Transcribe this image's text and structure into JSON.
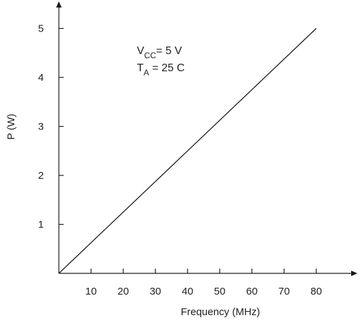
{
  "chart_data": {
    "type": "line",
    "title": "",
    "xlabel": "Frequency (MHz)",
    "ylabel": "P (W)",
    "xlim": [
      0,
      90
    ],
    "ylim": [
      0,
      5.5
    ],
    "xticks": [
      10,
      20,
      30,
      40,
      50,
      60,
      70,
      80
    ],
    "yticks": [
      1,
      2,
      3,
      4,
      5
    ],
    "grid": false,
    "x": [
      0,
      80
    ],
    "series": [
      {
        "values": [
          0,
          5
        ]
      }
    ],
    "annotations": {
      "vcc": {
        "main": "V",
        "sub": "CC",
        "rest": "= 5 V"
      },
      "ta": {
        "main": "T",
        "sub": "A",
        "rest": " = 25 C"
      }
    }
  },
  "colors": {
    "axis": "#1a1a1a",
    "line": "#1a1a1a",
    "text": "#222222"
  }
}
